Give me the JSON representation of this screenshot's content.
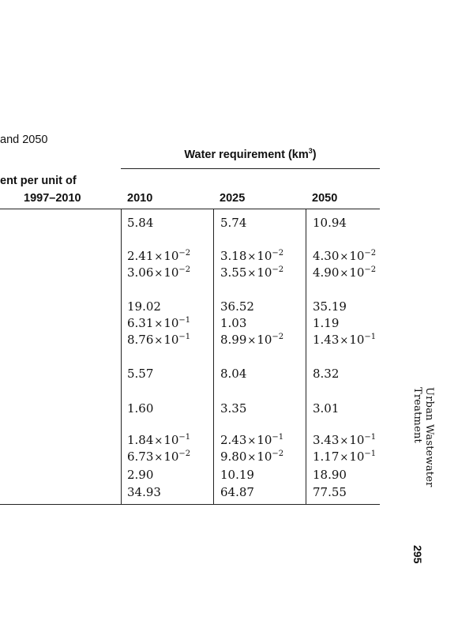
{
  "caption": "and 2050",
  "group_header": {
    "text": "Water requirement (km",
    "sup": "3",
    "close": ")"
  },
  "left_header": {
    "line1": "ent per unit of",
    "line2": "1997–2010"
  },
  "years": [
    "2010",
    "2025",
    "2050"
  ],
  "rows": [
    {
      "y2010": {
        "m": "5.84"
      },
      "y2025": {
        "m": "5.74"
      },
      "y2050": {
        "m": "10.94"
      }
    },
    {
      "y2010": {
        "m": "2.41",
        "e": "−2"
      },
      "y2025": {
        "m": "3.18",
        "e": "−2"
      },
      "y2050": {
        "m": "4.30",
        "e": "−2"
      }
    },
    {
      "y2010": {
        "m": "3.06",
        "e": "−2"
      },
      "y2025": {
        "m": "3.55",
        "e": "−2"
      },
      "y2050": {
        "m": "4.90",
        "e": "−2"
      }
    },
    {
      "y2010": {
        "m": "19.02"
      },
      "y2025": {
        "m": "36.52"
      },
      "y2050": {
        "m": "35.19"
      }
    },
    {
      "y2010": {
        "m": "6.31",
        "e": "−1"
      },
      "y2025": {
        "m": "1.03"
      },
      "y2050": {
        "m": "1.19"
      }
    },
    {
      "y2010": {
        "m": "8.76",
        "e": "−1"
      },
      "y2025": {
        "m": "8.99",
        "e": "−2"
      },
      "y2050": {
        "m": "1.43",
        "e": "−1"
      }
    },
    {
      "y2010": {
        "m": "5.57"
      },
      "y2025": {
        "m": "8.04"
      },
      "y2050": {
        "m": "8.32"
      }
    },
    {
      "y2010": {
        "m": "1.60"
      },
      "y2025": {
        "m": "3.35"
      },
      "y2050": {
        "m": "3.01"
      }
    },
    {
      "y2010": {
        "m": "1.84",
        "e": "−1"
      },
      "y2025": {
        "m": "2.43",
        "e": "−1"
      },
      "y2050": {
        "m": "3.43",
        "e": "−1"
      }
    },
    {
      "y2010": {
        "m": "6.73",
        "e": "−2"
      },
      "y2025": {
        "m": "9.80",
        "e": "−2"
      },
      "y2050": {
        "m": "1.17",
        "e": "−1"
      }
    },
    {
      "y2010": {
        "m": "2.90"
      },
      "y2025": {
        "m": "10.19"
      },
      "y2050": {
        "m": "18.90"
      }
    },
    {
      "y2010": {
        "m": "34.93"
      },
      "y2025": {
        "m": "64.87"
      },
      "y2050": {
        "m": "77.55"
      }
    }
  ],
  "times_sign": "×",
  "exp_base": "10",
  "running_head": "Urban Wastewater Treatment",
  "page_number": "295"
}
